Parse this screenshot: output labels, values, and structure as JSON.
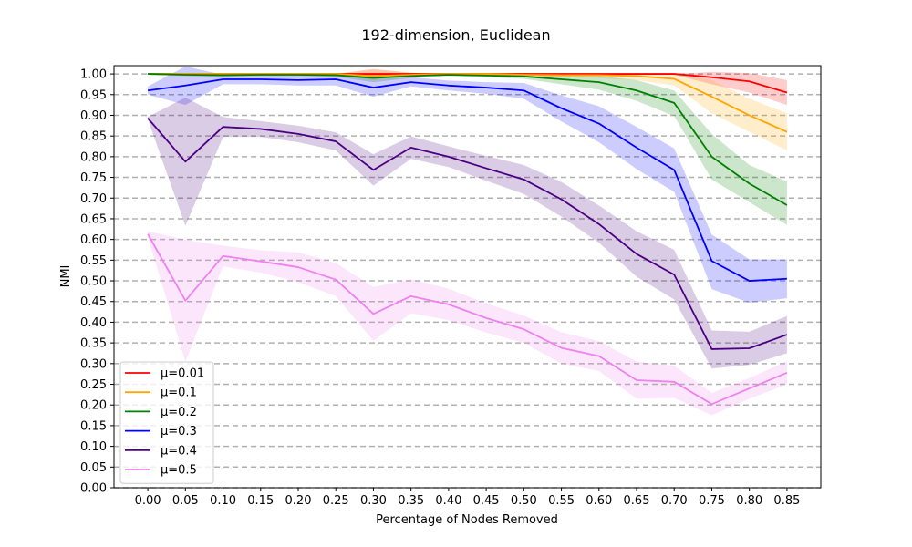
{
  "chart_data": {
    "type": "line",
    "title": "192-dimension, Euclidean",
    "xlabel": "Percentage of Nodes Removed",
    "ylabel": "NMI",
    "xlim": [
      -0.045,
      0.895
    ],
    "ylim": [
      0.0,
      1.02
    ],
    "grid": "horizontal-dashed",
    "legend_position": "lower-left",
    "x": [
      0.0,
      0.05,
      0.1,
      0.15,
      0.2,
      0.25,
      0.3,
      0.35,
      0.4,
      0.45,
      0.5,
      0.55,
      0.6,
      0.65,
      0.7,
      0.75,
      0.8,
      0.85
    ],
    "x_tick_labels": [
      "0.00",
      "0.05",
      "0.10",
      "0.15",
      "0.20",
      "0.25",
      "0.30",
      "0.35",
      "0.40",
      "0.45",
      "0.50",
      "0.55",
      "0.60",
      "0.65",
      "0.70",
      "0.75",
      "0.80",
      "0.85"
    ],
    "y_ticks": [
      0.0,
      0.05,
      0.1,
      0.15,
      0.2,
      0.25,
      0.3,
      0.35,
      0.4,
      0.45,
      0.5,
      0.55,
      0.6,
      0.65,
      0.7,
      0.75,
      0.8,
      0.85,
      0.9,
      0.95,
      1.0
    ],
    "y_tick_labels": [
      "0.00",
      "0.05",
      "0.10",
      "0.15",
      "0.20",
      "0.25",
      "0.30",
      "0.35",
      "0.40",
      "0.45",
      "0.50",
      "0.55",
      "0.60",
      "0.65",
      "0.70",
      "0.75",
      "0.80",
      "0.85",
      "0.90",
      "0.95",
      "1.00"
    ],
    "series": [
      {
        "name": "μ=0.01",
        "color": "#ff0000",
        "values": [
          1.0,
          1.0,
          1.0,
          1.0,
          1.0,
          1.0,
          1.0,
          1.0,
          1.0,
          1.0,
          1.0,
          1.0,
          1.0,
          1.0,
          1.0,
          0.992,
          0.982,
          0.955
        ],
        "lower": [
          0.998,
          0.998,
          0.998,
          0.998,
          0.998,
          0.998,
          0.993,
          0.997,
          0.998,
          0.998,
          0.998,
          0.998,
          0.998,
          0.998,
          0.998,
          0.975,
          0.955,
          0.925
        ],
        "upper": [
          1.0,
          1.0,
          1.0,
          1.0,
          1.0,
          1.0,
          1.012,
          1.003,
          1.0,
          1.0,
          1.0,
          1.0,
          1.0,
          1.0,
          1.0,
          1.005,
          1.002,
          0.985
        ]
      },
      {
        "name": "μ=0.1",
        "color": "#ffa500",
        "values": [
          1.0,
          1.0,
          1.0,
          1.0,
          1.0,
          1.0,
          0.995,
          0.998,
          1.0,
          1.0,
          0.998,
          0.997,
          0.997,
          0.995,
          0.988,
          0.945,
          0.9,
          0.86
        ],
        "lower": [
          0.998,
          0.998,
          0.998,
          0.998,
          0.998,
          0.998,
          0.985,
          0.993,
          0.998,
          0.998,
          0.995,
          0.992,
          0.99,
          0.985,
          0.972,
          0.905,
          0.86,
          0.815
        ],
        "upper": [
          1.0,
          1.0,
          1.0,
          1.0,
          1.0,
          1.0,
          1.01,
          1.003,
          1.0,
          1.0,
          1.0,
          1.0,
          1.0,
          1.0,
          1.0,
          0.985,
          0.94,
          0.905
        ]
      },
      {
        "name": "μ=0.2",
        "color": "#008000",
        "values": [
          1.0,
          0.998,
          0.997,
          0.998,
          0.998,
          0.997,
          0.99,
          0.995,
          0.998,
          0.996,
          0.994,
          0.987,
          0.98,
          0.96,
          0.93,
          0.8,
          0.735,
          0.683
        ],
        "lower": [
          0.998,
          0.995,
          0.993,
          0.995,
          0.995,
          0.993,
          0.98,
          0.99,
          0.995,
          0.992,
          0.988,
          0.975,
          0.962,
          0.935,
          0.898,
          0.745,
          0.69,
          0.635
        ],
        "upper": [
          1.0,
          1.0,
          1.0,
          1.0,
          1.0,
          1.0,
          1.0,
          1.0,
          1.0,
          1.0,
          1.0,
          0.998,
          0.995,
          0.985,
          0.96,
          0.855,
          0.78,
          0.74
        ]
      },
      {
        "name": "μ=0.3",
        "color": "#0000ff",
        "values": [
          0.96,
          0.972,
          0.987,
          0.987,
          0.985,
          0.987,
          0.967,
          0.98,
          0.972,
          0.967,
          0.96,
          0.917,
          0.88,
          0.822,
          0.768,
          0.548,
          0.5,
          0.505
        ],
        "lower": [
          0.95,
          0.925,
          0.975,
          0.975,
          0.972,
          0.972,
          0.945,
          0.97,
          0.96,
          0.952,
          0.94,
          0.885,
          0.835,
          0.77,
          0.715,
          0.48,
          0.447,
          0.458
        ],
        "upper": [
          0.97,
          1.018,
          0.998,
          0.998,
          0.997,
          1.0,
          0.987,
          0.992,
          0.984,
          0.98,
          0.978,
          0.948,
          0.922,
          0.872,
          0.82,
          0.612,
          0.552,
          0.552
        ]
      },
      {
        "name": "μ=0.4",
        "color": "#4b0082",
        "values": [
          0.893,
          0.788,
          0.872,
          0.867,
          0.855,
          0.837,
          0.768,
          0.822,
          0.8,
          0.772,
          0.745,
          0.697,
          0.637,
          0.565,
          0.515,
          0.335,
          0.337,
          0.37
        ],
        "lower": [
          0.89,
          0.633,
          0.848,
          0.848,
          0.835,
          0.815,
          0.73,
          0.795,
          0.775,
          0.742,
          0.71,
          0.655,
          0.592,
          0.51,
          0.455,
          0.288,
          0.297,
          0.325
        ],
        "upper": [
          0.896,
          0.943,
          0.896,
          0.886,
          0.875,
          0.859,
          0.806,
          0.849,
          0.825,
          0.802,
          0.78,
          0.739,
          0.682,
          0.62,
          0.575,
          0.38,
          0.377,
          0.415
        ]
      },
      {
        "name": "μ=0.5",
        "color": "#ee82ee",
        "values": [
          0.613,
          0.452,
          0.56,
          0.547,
          0.533,
          0.503,
          0.42,
          0.463,
          0.443,
          0.41,
          0.383,
          0.338,
          0.318,
          0.26,
          0.256,
          0.202,
          0.24,
          0.278
        ],
        "lower": [
          0.605,
          0.305,
          0.535,
          0.52,
          0.497,
          0.463,
          0.355,
          0.422,
          0.405,
          0.375,
          0.35,
          0.3,
          0.282,
          0.215,
          0.217,
          0.175,
          0.215,
          0.25
        ],
        "upper": [
          0.62,
          0.599,
          0.585,
          0.574,
          0.569,
          0.543,
          0.485,
          0.504,
          0.481,
          0.445,
          0.416,
          0.376,
          0.354,
          0.305,
          0.295,
          0.229,
          0.265,
          0.306
        ]
      }
    ]
  }
}
